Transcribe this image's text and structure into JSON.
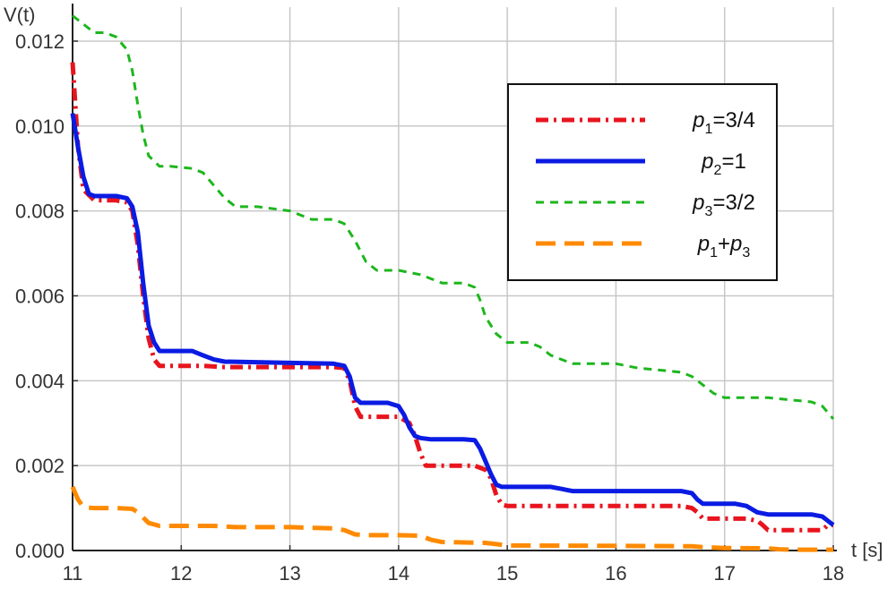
{
  "chart_data": {
    "type": "line",
    "title": "",
    "xlabel": "t [s]",
    "ylabel": "V(t)",
    "xlim": [
      11,
      18
    ],
    "ylim": [
      0,
      0.0128
    ],
    "x_ticks": [
      "11",
      "12",
      "13",
      "14",
      "15",
      "16",
      "17",
      "18"
    ],
    "y_ticks": [
      "0.000",
      "0.002",
      "0.004",
      "0.006",
      "0.008",
      "0.010",
      "0.012"
    ],
    "grid": true,
    "legend_position": "top-right",
    "series": [
      {
        "name": "p1=3/4",
        "legend": {
          "sym": "p",
          "sub": "1",
          "rest": "=3/4"
        },
        "color": "#e8141e",
        "style": "dash-dot",
        "x": [
          11.0,
          11.05,
          11.1,
          11.2,
          11.3,
          11.4,
          11.5,
          11.55,
          11.6,
          11.65,
          11.7,
          11.75,
          11.8,
          12.0,
          12.2,
          12.4,
          13.0,
          13.4,
          13.5,
          13.55,
          13.6,
          13.65,
          13.7,
          14.0,
          14.1,
          14.15,
          14.2,
          14.25,
          14.3,
          14.7,
          14.8,
          14.85,
          14.9,
          14.95,
          15.0,
          16.0,
          16.6,
          16.7,
          16.75,
          16.8,
          17.2,
          17.3,
          17.35,
          17.4,
          17.9,
          17.95,
          18.0
        ],
        "y": [
          0.0115,
          0.0095,
          0.0085,
          0.00825,
          0.00825,
          0.00825,
          0.0082,
          0.008,
          0.0072,
          0.006,
          0.005,
          0.0045,
          0.00435,
          0.00435,
          0.00435,
          0.00432,
          0.00432,
          0.00432,
          0.0043,
          0.004,
          0.0034,
          0.00315,
          0.00315,
          0.00315,
          0.003,
          0.0027,
          0.0023,
          0.002,
          0.002,
          0.002,
          0.0019,
          0.0017,
          0.0013,
          0.00108,
          0.00105,
          0.00105,
          0.00105,
          0.001,
          0.0009,
          0.00075,
          0.00075,
          0.0007,
          0.0006,
          0.00048,
          0.00048,
          0.0006,
          0.0006
        ]
      },
      {
        "name": "p2=1",
        "legend": {
          "sym": "p",
          "sub": "2",
          "rest": "=1"
        },
        "color": "#0a1be3",
        "style": "solid",
        "x": [
          11.0,
          11.05,
          11.1,
          11.15,
          11.2,
          11.3,
          11.4,
          11.5,
          11.55,
          11.6,
          11.65,
          11.7,
          11.75,
          11.8,
          11.9,
          12.1,
          12.2,
          12.3,
          12.4,
          13.0,
          13.4,
          13.5,
          13.55,
          13.6,
          13.65,
          13.7,
          13.9,
          14.0,
          14.05,
          14.1,
          14.15,
          14.2,
          14.3,
          14.6,
          14.7,
          14.75,
          14.8,
          14.85,
          14.9,
          14.95,
          15.0,
          15.4,
          15.5,
          15.6,
          16.0,
          16.6,
          16.7,
          16.75,
          16.8,
          17.0,
          17.1,
          17.2,
          17.3,
          17.4,
          17.8,
          17.9,
          17.95,
          18.0
        ],
        "y": [
          0.0103,
          0.0095,
          0.0088,
          0.0084,
          0.00835,
          0.00835,
          0.00835,
          0.0083,
          0.0081,
          0.0075,
          0.0063,
          0.0053,
          0.0049,
          0.0047,
          0.0047,
          0.0047,
          0.0046,
          0.0045,
          0.00445,
          0.00442,
          0.0044,
          0.00435,
          0.0041,
          0.0036,
          0.00348,
          0.00348,
          0.00348,
          0.0034,
          0.0032,
          0.0029,
          0.0027,
          0.00265,
          0.00262,
          0.00262,
          0.0026,
          0.0024,
          0.0021,
          0.0018,
          0.00155,
          0.0015,
          0.0015,
          0.0015,
          0.00145,
          0.0014,
          0.0014,
          0.0014,
          0.00135,
          0.0012,
          0.0011,
          0.0011,
          0.0011,
          0.00105,
          0.0009,
          0.00085,
          0.00085,
          0.0008,
          0.0007,
          0.0006
        ]
      },
      {
        "name": "p3=3/2",
        "legend": {
          "sym": "p",
          "sub": "3",
          "rest": "=3/2"
        },
        "color": "#1db61d",
        "style": "short-dash",
        "x": [
          11.0,
          11.1,
          11.2,
          11.3,
          11.4,
          11.5,
          11.55,
          11.6,
          11.65,
          11.7,
          11.8,
          11.9,
          12.1,
          12.2,
          12.3,
          12.4,
          12.5,
          12.7,
          13.0,
          13.1,
          13.2,
          13.4,
          13.5,
          13.6,
          13.7,
          13.8,
          13.9,
          14.0,
          14.2,
          14.4,
          14.6,
          14.7,
          14.75,
          14.8,
          14.9,
          15.0,
          15.2,
          15.3,
          15.4,
          15.5,
          15.6,
          15.8,
          16.0,
          16.2,
          16.6,
          16.7,
          16.8,
          16.9,
          17.0,
          17.4,
          17.8,
          17.9,
          18.0
        ],
        "y": [
          0.0126,
          0.0124,
          0.0122,
          0.0122,
          0.0121,
          0.0118,
          0.0113,
          0.0105,
          0.0098,
          0.0093,
          0.00905,
          0.00905,
          0.009,
          0.0089,
          0.0086,
          0.0083,
          0.0081,
          0.0081,
          0.008,
          0.0079,
          0.0078,
          0.0078,
          0.0077,
          0.0073,
          0.0068,
          0.0066,
          0.0066,
          0.0066,
          0.0065,
          0.0063,
          0.0063,
          0.0062,
          0.0059,
          0.0055,
          0.0051,
          0.0049,
          0.0049,
          0.0048,
          0.0046,
          0.0045,
          0.0044,
          0.0044,
          0.0044,
          0.0043,
          0.0042,
          0.0041,
          0.0039,
          0.0037,
          0.0036,
          0.0036,
          0.0035,
          0.0034,
          0.0031
        ]
      },
      {
        "name": "p1+p3",
        "legend": {
          "sym": "p",
          "sub": "1",
          "rest": "+",
          "sym2": "p",
          "sub2": "3"
        },
        "color": "#ff8a00",
        "style": "long-dash",
        "x": [
          11.0,
          11.05,
          11.1,
          11.2,
          11.4,
          11.55,
          11.6,
          11.7,
          11.8,
          12.0,
          12.3,
          12.5,
          13.0,
          13.4,
          13.5,
          13.6,
          13.7,
          14.0,
          14.2,
          14.3,
          14.4,
          14.8,
          14.9,
          15.0,
          16.0,
          16.7,
          16.8,
          17.0,
          17.4,
          17.5,
          17.6,
          18.0
        ],
        "y": [
          0.0015,
          0.0012,
          0.00102,
          0.001,
          0.001,
          0.00098,
          0.0009,
          0.00065,
          0.00058,
          0.00058,
          0.00058,
          0.00055,
          0.00055,
          0.00052,
          0.00048,
          0.00038,
          0.00036,
          0.00036,
          0.00035,
          0.00025,
          0.0002,
          0.00018,
          0.00015,
          0.00012,
          0.00011,
          0.0001,
          8e-05,
          6e-05,
          5e-05,
          3e-05,
          2e-05,
          2e-05
        ]
      }
    ]
  }
}
